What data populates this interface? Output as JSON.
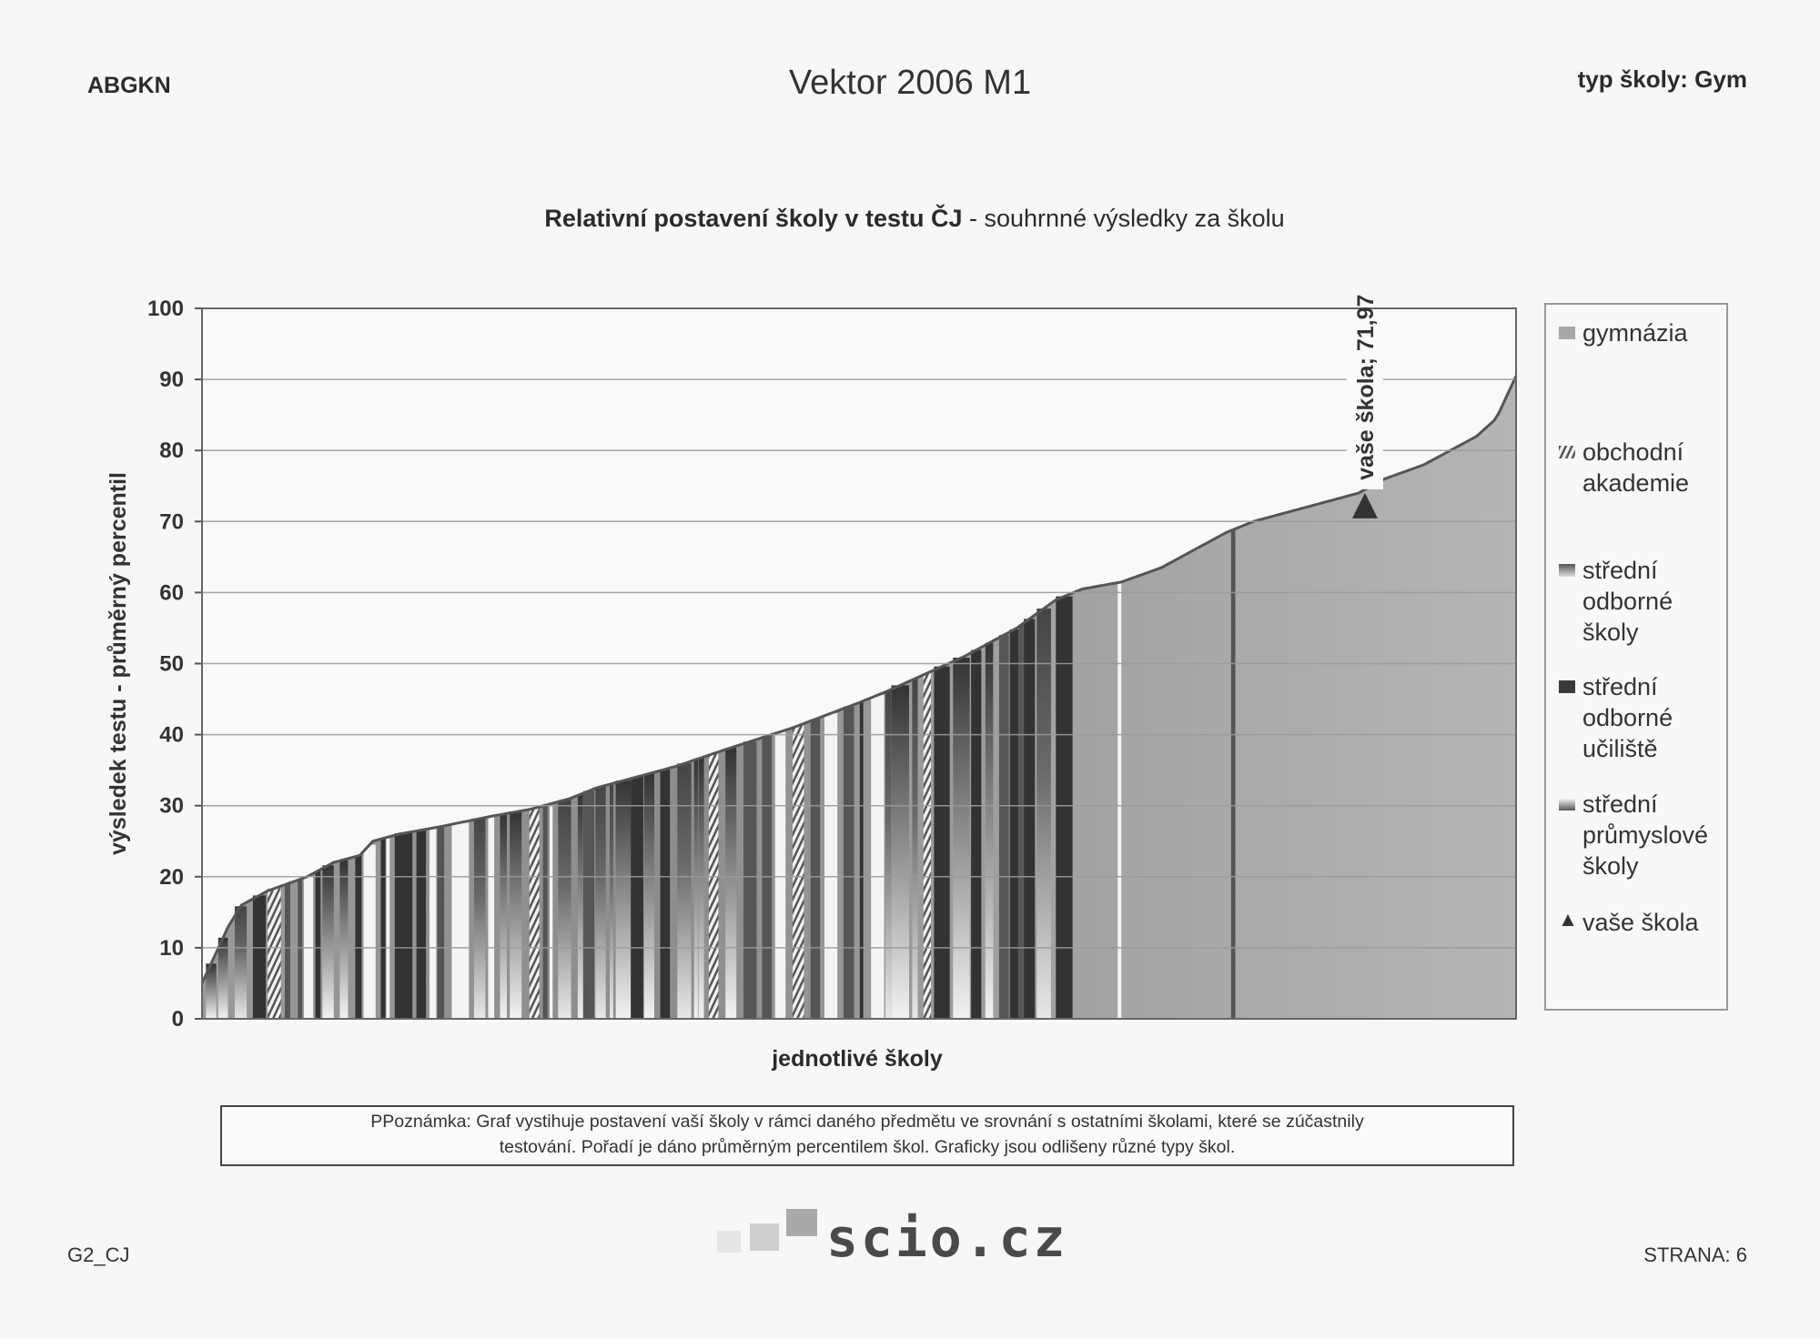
{
  "header": {
    "code": "ABGKN",
    "title": "Vektor 2006 M1",
    "school_type": "typ školy: Gym"
  },
  "chart_data": {
    "type": "bar",
    "title_bold": "Relativní postavení školy v testu ČJ",
    "title_rest": " - souhrnné výsledky za školu",
    "xlabel": "jednotlivé školy",
    "ylabel": "výsledek testu - průměrný percentil",
    "ylim": [
      0,
      100
    ],
    "yticks": [
      0,
      10,
      20,
      30,
      40,
      50,
      60,
      70,
      80,
      90,
      100
    ],
    "grid": true,
    "legend_position": "right",
    "sorted_ascending": true,
    "curve": {
      "x_fraction": [
        0,
        0.01,
        0.02,
        0.03,
        0.05,
        0.08,
        0.1,
        0.12,
        0.13,
        0.15,
        0.18,
        0.22,
        0.25,
        0.28,
        0.3,
        0.33,
        0.36,
        0.4,
        0.45,
        0.5,
        0.52,
        0.55,
        0.58,
        0.6,
        0.62,
        0.65,
        0.67,
        0.7,
        0.73,
        0.75,
        0.78,
        0.8,
        0.82,
        0.85,
        0.88,
        0.9,
        0.93,
        0.95,
        0.97,
        0.985,
        1.0
      ],
      "values": [
        5,
        9,
        13,
        16,
        18,
        20,
        22,
        23,
        25,
        26,
        27,
        28.5,
        29.5,
        31,
        32.5,
        34,
        35.5,
        38,
        41,
        44.5,
        46,
        48.5,
        51,
        53,
        55,
        59,
        60.5,
        61.5,
        63.5,
        65.5,
        68.5,
        70,
        71,
        72.5,
        74,
        76,
        78,
        80,
        82,
        84.5,
        90.5
      ]
    },
    "series": [
      {
        "name": "gymnázia",
        "color": "#a8a8a8"
      },
      {
        "name": "obchodní akademie",
        "color": "#777777"
      },
      {
        "name": "střední odborné školy",
        "color": "#555555"
      },
      {
        "name": "střední odborné učiliště",
        "color": "#3a3a3a"
      },
      {
        "name": "střední průmyslové školy",
        "color": "#bbbbbb"
      },
      {
        "name": "vaše škola",
        "color": "#333333"
      }
    ],
    "annotation": {
      "label": "vaše škola; 71,97",
      "value": 71.97,
      "x_fraction": 0.885
    }
  },
  "note": {
    "line1": "PPoznámka: Graf vystihuje postavení vaší školy v rámci daného předmětu ve srovnání s ostatními školami, které se zúčastnily",
    "line2": "testování. Pořadí je dáno průměrným percentilem škol. Graficky jsou odlišeny různé typy škol."
  },
  "footer": {
    "left": "G2_CJ",
    "logo_text": "scio.cz",
    "page": "STRANA: 6"
  }
}
